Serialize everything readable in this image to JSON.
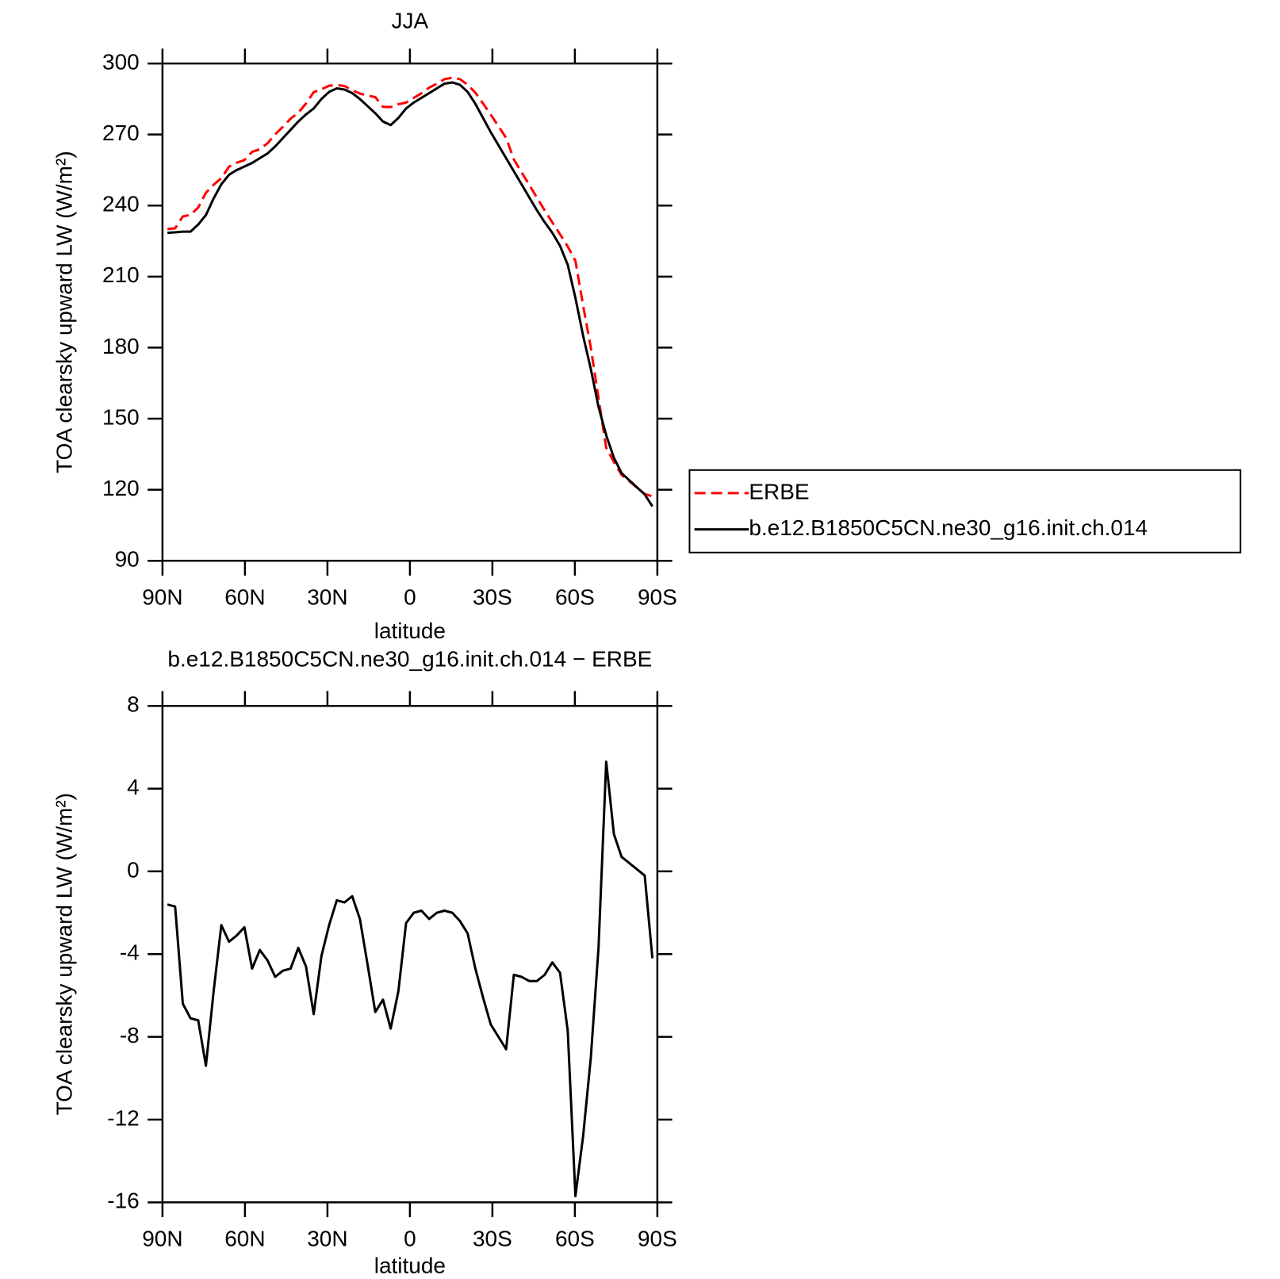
{
  "chart_data": [
    {
      "type": "line",
      "title": "JJA",
      "xlabel": "latitude",
      "ylabel": "TOA clearsky upward LW (W/m²)",
      "x": [
        88.2,
        85.4,
        82.6,
        79.8,
        77,
        74.2,
        71.4,
        68.6,
        65.8,
        63,
        60.2,
        57.4,
        54.6,
        51.8,
        49,
        46.2,
        43.4,
        40.6,
        37.8,
        35,
        32.2,
        29.4,
        26.6,
        23.8,
        21,
        18.2,
        15.4,
        12.6,
        9.8,
        7,
        4.2,
        1.4,
        -1.4,
        -4.2,
        -7,
        -9.8,
        -12.6,
        -15.4,
        -18.2,
        -21,
        -23.8,
        -26.6,
        -29.4,
        -32.2,
        -35,
        -37.8,
        -40.6,
        -43.4,
        -46.2,
        -49,
        -51.8,
        -54.6,
        -57.4,
        -60.2,
        -63,
        -65.8,
        -68.6,
        -71.4,
        -74.2,
        -77,
        -79.8,
        -82.6,
        -85.4,
        -88.2
      ],
      "series": [
        {
          "name": "ERBE",
          "color": "#ff0000",
          "dashed": true,
          "values": [
            230.1,
            230.4,
            235.4,
            236.1,
            239.2,
            245.4,
            248.8,
            251.6,
            256.4,
            258.1,
            259.2,
            262.7,
            263.8,
            266.3,
            270.1,
            273.3,
            276.7,
            279.2,
            283.1,
            287.9,
            289.1,
            290.6,
            290.9,
            290.5,
            288.7,
            287.3,
            286.5,
            285.8,
            281.7,
            281.6,
            282.8,
            283.5,
            285.5,
            287.4,
            289.8,
            291.5,
            293.4,
            294.0,
            293.4,
            291.0,
            287.7,
            283.1,
            278.4,
            273.5,
            268.6,
            259.5,
            254.1,
            248.8,
            243.3,
            238.0,
            232.9,
            227.9,
            222.7,
            216.7,
            197.8,
            180.0,
            158.7,
            137.7,
            131.7,
            126.3,
            123.6,
            120.9,
            118.2,
            117.2
          ]
        },
        {
          "name": "b.e12.B1850C5CN.ne30_g16.init.ch.014",
          "color": "#000000",
          "dashed": false,
          "values": [
            228.5,
            228.7,
            229,
            229,
            232,
            236,
            243,
            249,
            253,
            255,
            256.5,
            258,
            260,
            262,
            265,
            268.5,
            272,
            275.5,
            278.5,
            281,
            285,
            288,
            289.5,
            289,
            287.5,
            285,
            282,
            279,
            275.5,
            274,
            277,
            281,
            283.5,
            285.5,
            287.5,
            289.5,
            291.5,
            292,
            291,
            288,
            283,
            277,
            271,
            265.5,
            260,
            254.5,
            249,
            243.5,
            238,
            233,
            228.5,
            223,
            215,
            201,
            185,
            171,
            155,
            143,
            133.5,
            127,
            124,
            121,
            118,
            113
          ]
        }
      ],
      "xlim": [
        90,
        -90
      ],
      "xticks": [
        {
          "value": 90,
          "label": "90N"
        },
        {
          "value": 60,
          "label": "60N"
        },
        {
          "value": 30,
          "label": "30N"
        },
        0,
        {
          "value": -30,
          "label": "30S"
        },
        {
          "value": -60,
          "label": "60S"
        },
        {
          "value": -90,
          "label": "90S"
        }
      ],
      "ylim": [
        90,
        300
      ],
      "yticks": [
        90,
        120,
        150,
        180,
        210,
        240,
        270,
        300
      ],
      "legend": "right"
    },
    {
      "type": "line",
      "title": "b.e12.B1850C5CN.ne30_g16.init.ch.014 − ERBE",
      "xlabel": "latitude",
      "ylabel": "TOA clearsky upward LW (W/m²)",
      "x": [
        88.2,
        85.4,
        82.6,
        79.8,
        77,
        74.2,
        71.4,
        68.6,
        65.8,
        63,
        60.2,
        57.4,
        54.6,
        51.8,
        49,
        46.2,
        43.4,
        40.6,
        37.8,
        35,
        32.2,
        29.4,
        26.6,
        23.8,
        21,
        18.2,
        15.4,
        12.6,
        9.8,
        7,
        4.2,
        1.4,
        -1.4,
        -4.2,
        -7,
        -9.8,
        -12.6,
        -15.4,
        -18.2,
        -21,
        -23.8,
        -26.6,
        -29.4,
        -32.2,
        -35,
        -37.8,
        -40.6,
        -43.4,
        -46.2,
        -49,
        -51.8,
        -54.6,
        -57.4,
        -60.2,
        -63,
        -65.8,
        -68.6,
        -71.4,
        -74.2,
        -77,
        -79.8,
        -82.6,
        -85.4,
        -88.2
      ],
      "values": [
        -1.6,
        -1.7,
        -6.4,
        -7.1,
        -7.2,
        -9.4,
        -5.8,
        -2.6,
        -3.4,
        -3.1,
        -2.7,
        -4.7,
        -3.8,
        -4.3,
        -5.1,
        -4.8,
        -4.7,
        -3.7,
        -4.6,
        -6.9,
        -4.1,
        -2.6,
        -1.4,
        -1.5,
        -1.2,
        -2.3,
        -4.5,
        -6.8,
        -6.2,
        -7.6,
        -5.8,
        -2.5,
        -2.0,
        -1.9,
        -2.3,
        -2.0,
        -1.9,
        -2.0,
        -2.4,
        -3.0,
        -4.7,
        -6.1,
        -7.4,
        -8.0,
        -8.6,
        -5.0,
        -5.1,
        -5.3,
        -5.3,
        -5.0,
        -4.4,
        -4.9,
        -7.7,
        -15.7,
        -12.8,
        -9.0,
        -3.7,
        5.3,
        1.8,
        0.7,
        0.4,
        0.1,
        -0.2,
        -4.2
      ],
      "color": "#000000",
      "xlim": [
        90,
        -90
      ],
      "xticks": [
        {
          "value": 90,
          "label": "90N"
        },
        {
          "value": 60,
          "label": "60N"
        },
        {
          "value": 30,
          "label": "30N"
        },
        0,
        {
          "value": -30,
          "label": "30S"
        },
        {
          "value": -60,
          "label": "60S"
        },
        {
          "value": -90,
          "label": "90S"
        }
      ],
      "ylim": [
        -16,
        8
      ],
      "yticks": [
        -16,
        -12,
        -8,
        -4,
        0,
        4,
        8
      ]
    }
  ]
}
